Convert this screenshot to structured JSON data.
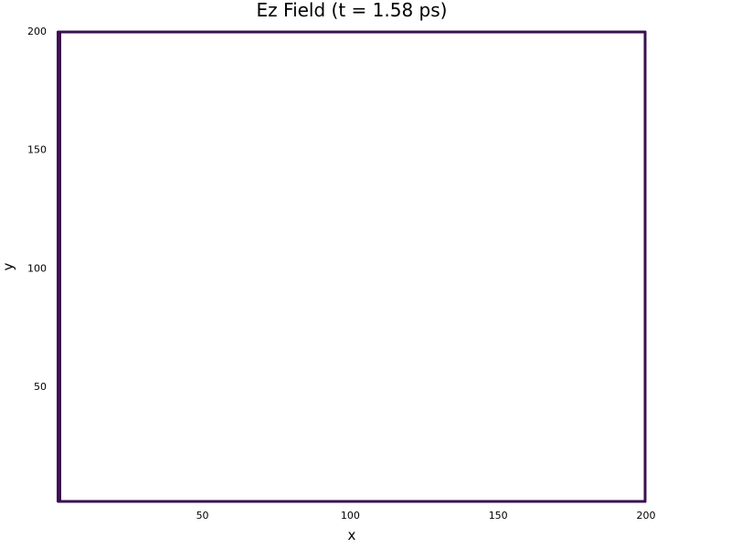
{
  "chart_data": {
    "type": "heatmap",
    "title": "Ez Field (t = 1.58 ps)",
    "xlabel": "x",
    "ylabel": "y",
    "xlim": [
      1,
      200
    ],
    "ylim": [
      1,
      200
    ],
    "x_ticks": [
      50,
      100,
      150,
      200
    ],
    "y_ticks": [
      50,
      100,
      150,
      200
    ],
    "x_tick_labels": [
      "50",
      "100",
      "150",
      "200"
    ],
    "y_tick_labels": [
      "50",
      "100",
      "150",
      "200"
    ],
    "grid": true,
    "field": "uniform (near zero) across the domain",
    "colors": {
      "frame": "#3b0f4f",
      "field": "#ffffff",
      "grid": "#e6e6e6"
    }
  }
}
